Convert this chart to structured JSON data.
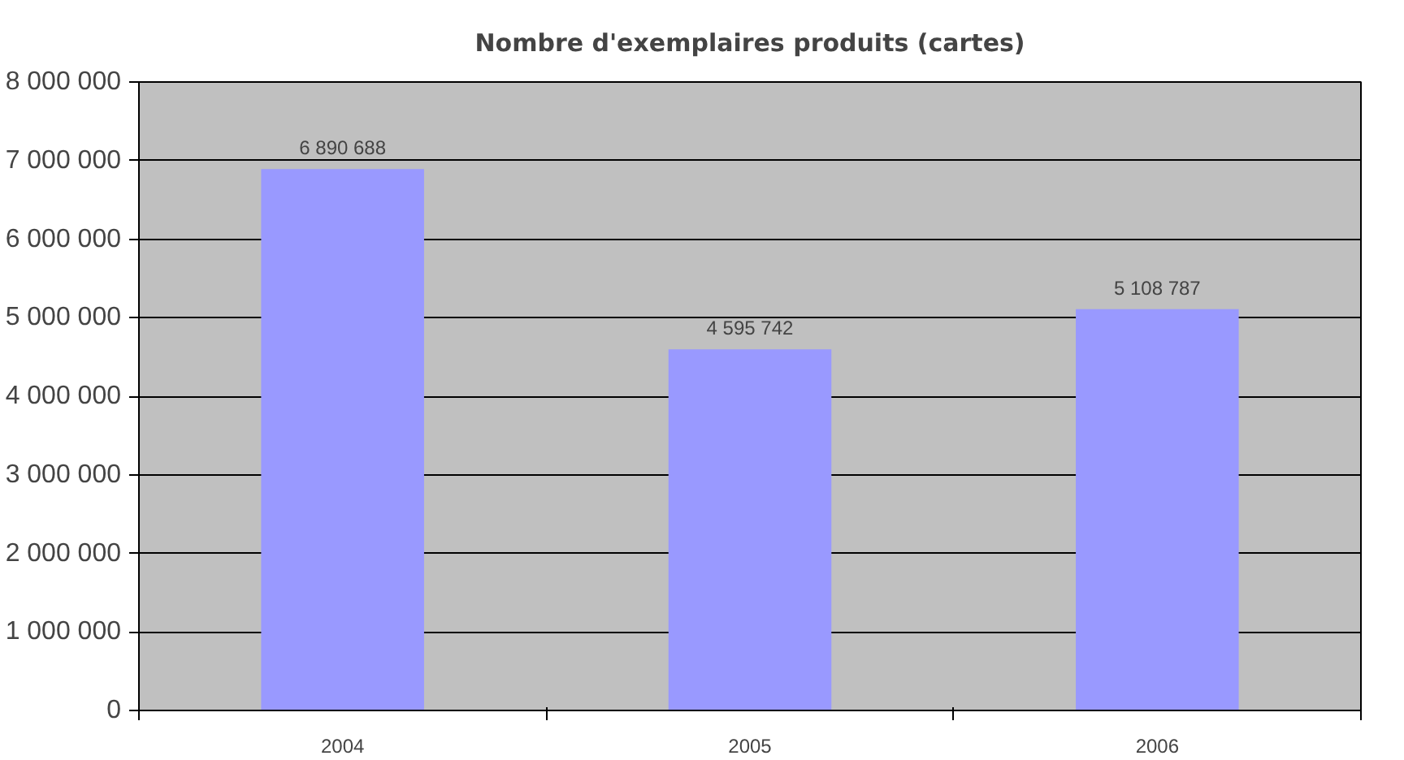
{
  "chart_data": {
    "type": "bar",
    "title": "Nombre d'exemplaires produits (cartes)",
    "categories": [
      "2004",
      "2005",
      "2006"
    ],
    "values": [
      6890688,
      4595742,
      5108787
    ],
    "value_labels": [
      "6 890 688",
      "4 595 742",
      "5 108 787"
    ],
    "color": "#9999ff",
    "ylim": [
      0,
      8000000
    ],
    "yticks": [
      {
        "value": 0,
        "label": "0"
      },
      {
        "value": 1000000,
        "label": "1 000 000"
      },
      {
        "value": 2000000,
        "label": "2 000 000"
      },
      {
        "value": 3000000,
        "label": "3 000 000"
      },
      {
        "value": 4000000,
        "label": "4 000 000"
      },
      {
        "value": 5000000,
        "label": "5 000 000"
      },
      {
        "value": 6000000,
        "label": "6 000 000"
      },
      {
        "value": 7000000,
        "label": "7 000 000"
      },
      {
        "value": 8000000,
        "label": "8 000 000"
      }
    ],
    "grid": "y"
  }
}
